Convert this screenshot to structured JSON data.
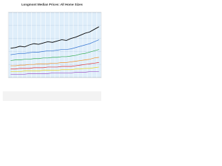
{
  "chart_data": {
    "type": "line",
    "title": "Longmont Median Prices: All Home Sizes",
    "categories": [
      null,
      null,
      null,
      null,
      null,
      null,
      null,
      null,
      null,
      null,
      null,
      null,
      null,
      null,
      null,
      null,
      null,
      null,
      null,
      null
    ],
    "ylim": [
      0,
      100
    ],
    "yticks": [
      0,
      20,
      40,
      60,
      80,
      100
    ],
    "grid": true,
    "series": [
      {
        "color": "#000000",
        "values": [
          45,
          46,
          48,
          47,
          50,
          52,
          51,
          53,
          55,
          54,
          56,
          58,
          57,
          60,
          62,
          65,
          68,
          70,
          74,
          78
        ]
      },
      {
        "color": "#2f6fd0",
        "values": [
          35,
          36,
          37,
          37,
          38,
          39,
          39,
          40,
          41,
          41,
          42,
          43,
          43,
          44,
          46,
          48,
          50,
          52,
          55,
          58
        ]
      },
      {
        "color": "#2aa84a",
        "values": [
          26,
          27,
          27,
          28,
          28,
          29,
          29,
          30,
          30,
          31,
          31,
          32,
          32,
          33,
          34,
          36,
          37,
          39,
          41,
          43
        ]
      },
      {
        "color": "#f08a1c",
        "values": [
          18,
          18,
          19,
          19,
          20,
          20,
          21,
          21,
          21,
          22,
          22,
          23,
          23,
          24,
          25,
          26,
          27,
          28,
          30,
          31
        ]
      },
      {
        "color": "#e02a2a",
        "values": [
          13,
          13,
          14,
          14,
          14,
          15,
          15,
          15,
          16,
          16,
          16,
          17,
          17,
          17,
          18,
          19,
          20,
          21,
          22,
          23
        ]
      },
      {
        "color": "#e8d21a",
        "values": [
          9,
          9,
          9,
          10,
          10,
          10,
          10,
          11,
          11,
          11,
          11,
          12,
          12,
          12,
          13,
          13,
          14,
          14,
          15,
          16
        ]
      },
      {
        "color": "#9a4fc0",
        "values": [
          5,
          5,
          5,
          5,
          6,
          6,
          6,
          6,
          6,
          7,
          7,
          7,
          7,
          7,
          8,
          8,
          8,
          9,
          9,
          9
        ]
      }
    ]
  }
}
